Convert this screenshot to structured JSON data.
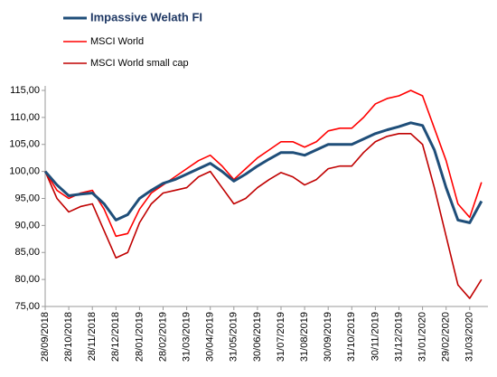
{
  "chart_data": {
    "type": "line",
    "categories": [
      "28/09/2018",
      null,
      "28/10/2018",
      null,
      "28/11/2018",
      null,
      "28/12/2018",
      null,
      "28/01/2019",
      null,
      "28/02/2019",
      null,
      "31/03/2019",
      null,
      "30/04/2019",
      null,
      "31/05/2019",
      null,
      "30/06/2019",
      null,
      "31/07/2019",
      null,
      "31/08/2019",
      null,
      "30/09/2019",
      null,
      "31/10/2019",
      null,
      "30/11/2019",
      null,
      "31/12/2019",
      null,
      "31/01/2020",
      null,
      "29/02/2020",
      null,
      "31/03/2020",
      null
    ],
    "series": [
      {
        "name": "Impassive Welath FI",
        "color": "#1f4e79",
        "values": [
          100,
          97.5,
          95.5,
          95.8,
          96,
          94,
          91,
          92,
          95,
          96.5,
          97.8,
          98.5,
          99.5,
          100.5,
          101.5,
          100,
          98.2,
          99.5,
          101,
          102.3,
          103.5,
          103.5,
          103,
          104,
          105,
          105,
          105,
          106,
          107,
          107.7,
          108.3,
          109,
          108.5,
          104,
          97,
          91,
          90.5,
          94.5
        ]
      },
      {
        "name": "MSCI World",
        "color": "#ff0000",
        "values": [
          100,
          96.5,
          95,
          96,
          96.5,
          93,
          88,
          88.5,
          93,
          96,
          97.5,
          99,
          100.5,
          102,
          103,
          101,
          98.5,
          100.5,
          102.5,
          104,
          105.5,
          105.5,
          104.5,
          105.5,
          107.5,
          108,
          108,
          110,
          112.5,
          113.5,
          114,
          115,
          114,
          108,
          102,
          94,
          91.5,
          98
        ]
      },
      {
        "name": "MSCI World small cap",
        "color": "#c00000",
        "values": [
          100,
          95,
          92.5,
          93.5,
          94,
          89,
          84,
          85,
          90.5,
          94,
          96,
          96.5,
          97,
          99,
          100,
          97,
          94,
          95,
          97,
          98.5,
          99.8,
          99,
          97.5,
          98.5,
          100.5,
          101,
          101,
          103.5,
          105.5,
          106.5,
          107,
          107,
          105,
          97,
          88,
          79,
          76.5,
          80
        ]
      }
    ],
    "ylim": [
      75,
      115
    ],
    "yticks": [
      {
        "value": 75,
        "label": "75,00"
      },
      {
        "value": 80,
        "label": "80,00"
      },
      {
        "value": 85,
        "label": "85,00"
      },
      {
        "value": 90,
        "label": "90,00"
      },
      {
        "value": 95,
        "label": "95,00"
      },
      {
        "value": 100,
        "label": "100,00"
      },
      {
        "value": 105,
        "label": "105,00"
      },
      {
        "value": 110,
        "label": "110,00"
      },
      {
        "value": 115,
        "label": "115,00"
      }
    ],
    "grid": false
  }
}
